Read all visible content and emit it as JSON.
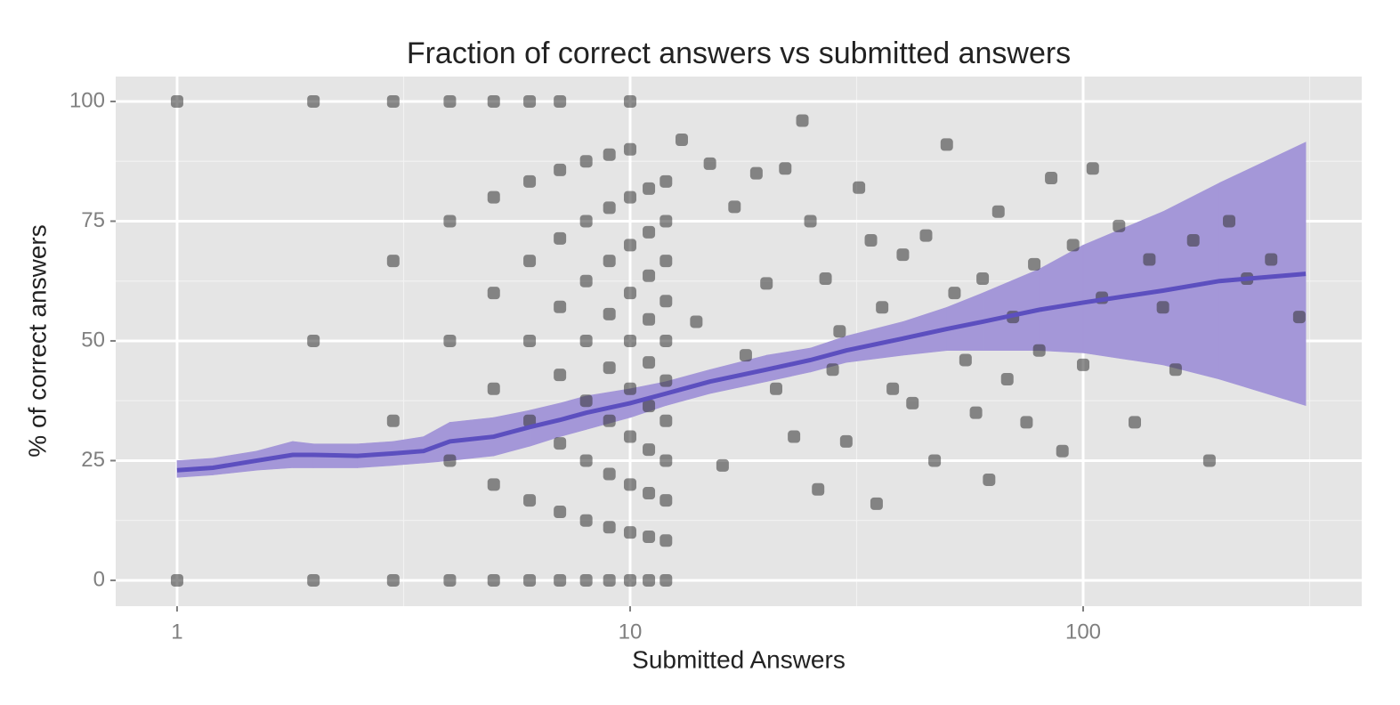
{
  "chart_data": {
    "type": "scatter",
    "title": "Fraction of correct answers vs submitted answers",
    "x_label": "Submitted Answers",
    "y_label": "% of correct answers",
    "log_x": true,
    "grid": true,
    "xlim": [
      0.732,
      412
    ],
    "ylim": [
      -5.4,
      105.2
    ],
    "xticks": [
      1,
      10,
      100
    ],
    "yticks": [
      0,
      25,
      50,
      75,
      100
    ],
    "xminor": [
      3.162,
      31.62,
      316.2
    ],
    "yminor": [
      12.5,
      37.5,
      62.5,
      87.5
    ],
    "points": {
      "color": "#333333",
      "x": [
        1,
        1,
        2,
        2,
        2,
        3,
        3,
        3,
        3,
        4,
        4,
        4,
        4,
        4,
        5,
        5,
        5,
        5,
        5,
        5,
        6,
        6,
        6,
        6,
        6,
        6,
        6,
        7,
        7,
        7,
        7,
        7,
        7,
        7,
        7,
        8,
        8,
        8,
        8,
        8,
        8,
        8,
        8,
        9,
        9,
        9,
        9,
        9,
        9,
        9,
        9,
        9,
        10,
        10,
        10,
        10,
        10,
        10,
        10,
        10,
        10,
        10,
        10,
        11,
        11,
        11,
        11,
        11,
        11,
        11,
        11,
        11,
        11,
        12,
        12,
        12,
        12,
        12,
        12,
        12,
        12,
        12,
        12,
        12,
        13,
        14,
        15,
        16,
        17,
        18,
        19,
        20,
        21,
        22,
        23,
        24,
        25,
        26,
        27,
        28,
        29,
        30,
        32,
        34,
        35,
        36,
        38,
        40,
        42,
        45,
        47,
        50,
        52,
        55,
        58,
        60,
        62,
        65,
        68,
        70,
        75,
        78,
        80,
        85,
        90,
        95,
        100,
        105,
        110,
        120,
        130,
        140,
        150,
        160,
        175,
        190,
        210,
        230,
        260,
        300
      ],
      "y": [
        0,
        100,
        0,
        50,
        100,
        0,
        33.3,
        66.7,
        100,
        0,
        25,
        50,
        75,
        100,
        0,
        20,
        40,
        60,
        80,
        100,
        0,
        16.7,
        33.3,
        50,
        66.7,
        83.3,
        100,
        0,
        14.3,
        28.6,
        42.9,
        57.1,
        71.4,
        85.7,
        100,
        0,
        12.5,
        25,
        37.5,
        50,
        62.5,
        75,
        87.5,
        0,
        11.1,
        22.2,
        33.3,
        44.4,
        55.6,
        66.7,
        77.8,
        88.9,
        0,
        10,
        20,
        30,
        40,
        50,
        60,
        70,
        80,
        90,
        100,
        0,
        9.1,
        18.2,
        27.3,
        36.4,
        45.5,
        54.5,
        63.6,
        72.7,
        81.8,
        0,
        8.3,
        16.7,
        25,
        33.3,
        41.7,
        50,
        58.3,
        66.7,
        75,
        83.3,
        92,
        54,
        87,
        24,
        78,
        47,
        85,
        62,
        40,
        86,
        30,
        96,
        75,
        19,
        63,
        44,
        52,
        29,
        82,
        71,
        16,
        57,
        40,
        68,
        37,
        72,
        25,
        91,
        60,
        46,
        35,
        63,
        21,
        77,
        42,
        55,
        33,
        66,
        48,
        84,
        27,
        70,
        45,
        86,
        59,
        74,
        33,
        67,
        57,
        44,
        71,
        25,
        75,
        63,
        67,
        55
      ]
    },
    "smooth": {
      "color": "#5c4fbf",
      "band_color": "#a497d8",
      "x": [
        1,
        1.2,
        1.5,
        1.8,
        2,
        2.5,
        3,
        3.5,
        4,
        5,
        6,
        7,
        8,
        10,
        12,
        15,
        20,
        25,
        30,
        40,
        50,
        60,
        80,
        100,
        150,
        200,
        310
      ],
      "y": [
        23,
        23.5,
        25,
        26.2,
        26.2,
        26,
        26.5,
        27,
        29,
        30,
        32,
        33.5,
        35,
        37,
        39,
        41.5,
        44,
        46,
        48,
        50.5,
        52.5,
        54,
        56.5,
        58,
        60.5,
        62.5,
        64
      ],
      "lower": [
        21.5,
        22,
        23,
        23.5,
        23.5,
        23.5,
        24,
        24.5,
        25,
        26,
        28,
        30,
        31.5,
        34,
        36.5,
        39,
        41.5,
        43.5,
        45.5,
        47,
        48,
        48,
        48,
        47.5,
        45,
        42,
        36.5
      ],
      "upper": [
        25,
        25.5,
        27,
        29,
        28.5,
        28.5,
        29,
        30,
        33,
        34,
        35.5,
        37,
        38.5,
        40,
        41.5,
        44,
        47,
        48.5,
        51,
        54,
        57,
        60,
        65,
        70,
        77,
        83,
        91.5
      ]
    }
  }
}
